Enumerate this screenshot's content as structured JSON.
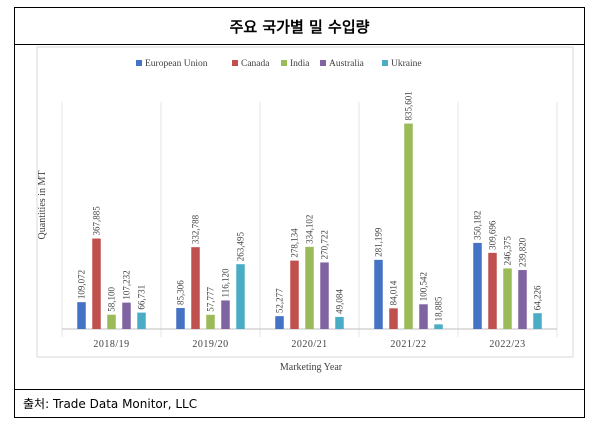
{
  "header": {
    "title": "주요 국가별 밀 수입량"
  },
  "footer": {
    "source": "출처: Trade Data Monitor, LLC"
  },
  "chart_data": {
    "type": "bar",
    "categories": [
      "2018/19",
      "2019/20",
      "2020/21",
      "2021/22",
      "2022/23"
    ],
    "series": [
      {
        "name": "European Union",
        "color": "#4472c4",
        "values": [
          109072,
          85306,
          52277,
          281199,
          350182
        ]
      },
      {
        "name": "Canada",
        "color": "#c0504d",
        "values": [
          367885,
          332788,
          278134,
          84014,
          309696
        ]
      },
      {
        "name": "India",
        "color": "#9bbb59",
        "values": [
          58100,
          57777,
          334102,
          835601,
          246375
        ]
      },
      {
        "name": "Australia",
        "color": "#8064a2",
        "values": [
          107232,
          116120,
          270722,
          100542,
          239820
        ]
      },
      {
        "name": "Ukraine",
        "color": "#4bacc6",
        "values": [
          66731,
          263495,
          49084,
          18885,
          64226
        ]
      }
    ],
    "value_labels": [
      [
        "109,072",
        "85,306",
        "52,277",
        "281,199",
        "350,182"
      ],
      [
        "367,885",
        "332,788",
        "278,134",
        "84,014",
        "309,696"
      ],
      [
        "58,100",
        "57,777",
        "334,102",
        "835,601",
        "246,375"
      ],
      [
        "107,232",
        "116,120",
        "270,722",
        "100,542",
        "239,820"
      ],
      [
        "66,731",
        "263,495",
        "49,084",
        "18,885",
        "64,226"
      ]
    ],
    "xlabel": "Marketing Year",
    "ylabel": "Quantities in MT",
    "ylim": [
      0,
      850000
    ],
    "legend_position": "top",
    "grid": false
  }
}
